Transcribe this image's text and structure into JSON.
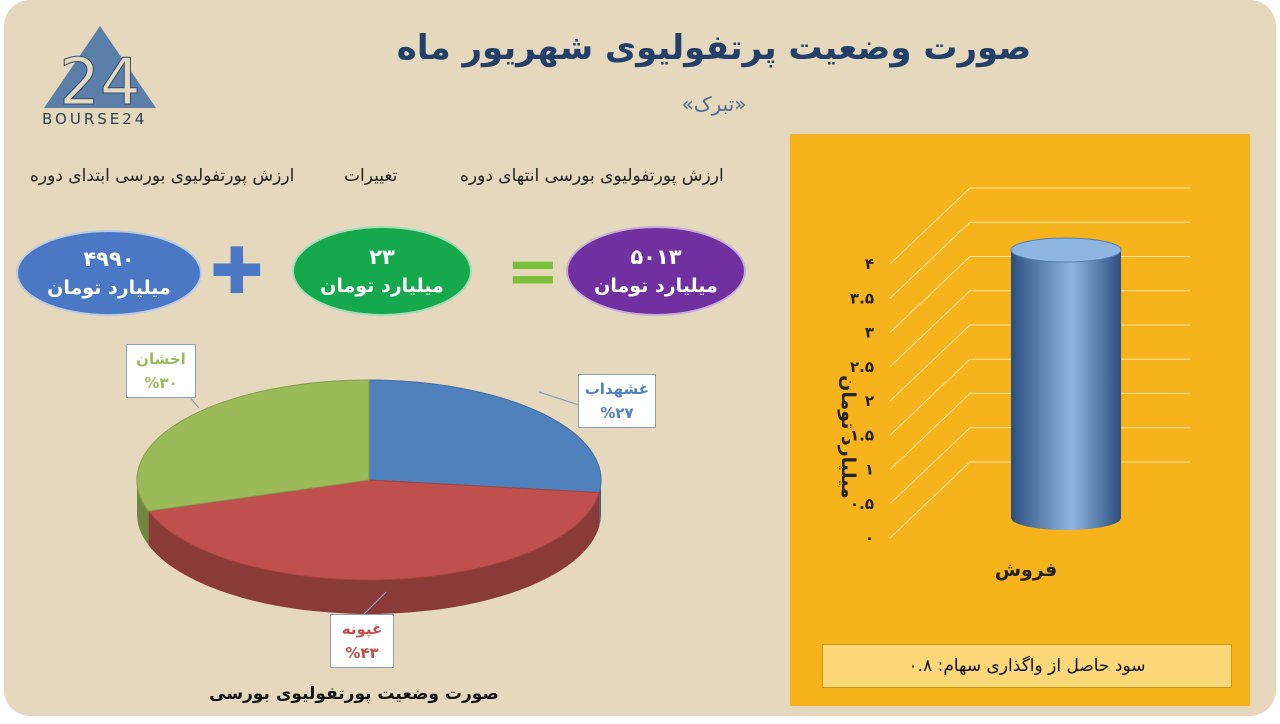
{
  "title": "صورت وضعیت پرتفولیوی شهریور ماه",
  "subtitle": "«تبرک»",
  "logo": {
    "text": "BOURSE24",
    "glyph": "24"
  },
  "headers": {
    "end_value": "ارزش پورتفولیوی بورسی انتهای دوره",
    "changes": "تغییرات",
    "start_value": "ارزش پورتفولیوی بورسی ابتدای دوره"
  },
  "bubbles": {
    "start": {
      "value": "۴۹۹۰",
      "unit": "میلیارد تومان",
      "color": "#4a78c4"
    },
    "change": {
      "value": "۲۳",
      "unit": "میلیارد تومان",
      "color": "#16a84c"
    },
    "end": {
      "value": "۵۰۱۳",
      "unit": "میلیارد تومان",
      "color": "#7030a0"
    }
  },
  "operators": {
    "plus_color": "#4a78c4",
    "equals_color": "#7bbf3a"
  },
  "pie_caption": "صورت وضعیت پورتفولیوی بورسی",
  "chart_data": [
    {
      "type": "pie",
      "title": "صورت وضعیت پورتفولیوی بورسی",
      "slices": [
        {
          "label": "غشهداب",
          "percent_label": "%۲۷",
          "value": 27,
          "color": "#4f81bd",
          "label_color": "#4f81bd"
        },
        {
          "label": "غپونه",
          "percent_label": "%۴۳",
          "value": 43,
          "color": "#c0504d",
          "label_color": "#c0504d"
        },
        {
          "label": "اخشان",
          "percent_label": "%۳۰",
          "value": 30,
          "color": "#9bbb59",
          "label_color": "#9bbb59"
        }
      ]
    },
    {
      "type": "bar",
      "categories": [
        "فروش"
      ],
      "values": [
        4
      ],
      "ylabel": "میلیارد تومان",
      "ylim": [
        0,
        4
      ],
      "yticks": [
        "۰",
        "۰.۵",
        "۱",
        "۱.۵",
        "۲",
        "۲.۵",
        "۳",
        "۳.۵",
        "۴"
      ],
      "grid": true,
      "bar_color": "#4f7fb5",
      "background": "#f7b31b"
    }
  ],
  "footer": "سود حاصل از واگذاری سهام: ۰.۸"
}
